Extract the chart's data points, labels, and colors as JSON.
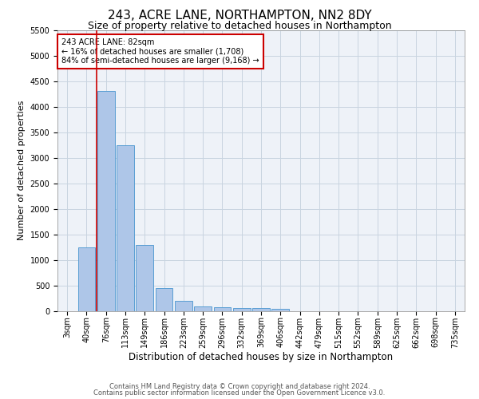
{
  "title_line1": "243, ACRE LANE, NORTHAMPTON, NN2 8DY",
  "title_line2": "Size of property relative to detached houses in Northampton",
  "xlabel": "Distribution of detached houses by size in Northampton",
  "ylabel": "Number of detached properties",
  "annotation_title": "243 ACRE LANE: 82sqm",
  "annotation_line2": "← 16% of detached houses are smaller (1,708)",
  "annotation_line3": "84% of semi-detached houses are larger (9,168) →",
  "footer_line1": "Contains HM Land Registry data © Crown copyright and database right 2024.",
  "footer_line2": "Contains public sector information licensed under the Open Government Licence v3.0.",
  "bar_categories": [
    "3sqm",
    "40sqm",
    "76sqm",
    "113sqm",
    "149sqm",
    "186sqm",
    "223sqm",
    "259sqm",
    "296sqm",
    "332sqm",
    "369sqm",
    "406sqm",
    "442sqm",
    "479sqm",
    "515sqm",
    "552sqm",
    "589sqm",
    "625sqm",
    "662sqm",
    "698sqm",
    "735sqm"
  ],
  "bar_values": [
    0,
    1250,
    4300,
    3250,
    1300,
    450,
    200,
    100,
    80,
    60,
    55,
    50,
    0,
    0,
    0,
    0,
    0,
    0,
    0,
    0,
    0
  ],
  "bar_color": "#aec6e8",
  "bar_edge_color": "#5a9fd4",
  "vline_color": "#cc0000",
  "annotation_box_color": "#cc0000",
  "annotation_box_facecolor": "white",
  "ylim": [
    0,
    5500
  ],
  "yticks": [
    0,
    500,
    1000,
    1500,
    2000,
    2500,
    3000,
    3500,
    4000,
    4500,
    5000,
    5500
  ],
  "grid_color": "#c8d4e0",
  "bg_color": "#eef2f8",
  "title_fontsize": 11,
  "subtitle_fontsize": 9,
  "axis_label_fontsize": 8,
  "tick_fontsize": 7,
  "annotation_fontsize": 7,
  "footer_fontsize": 6
}
